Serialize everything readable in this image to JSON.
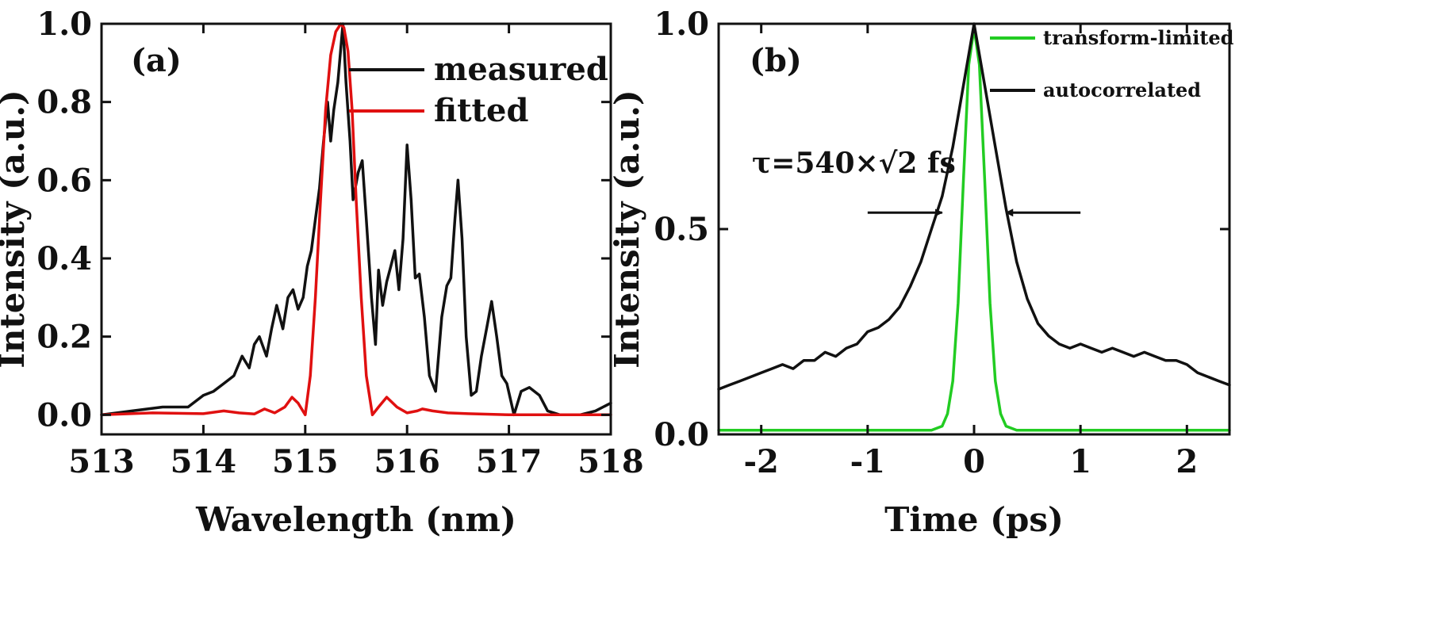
{
  "chart_data": [
    {
      "type": "line",
      "panel_label": "(a)",
      "xlabel": "Wavelength (nm)",
      "ylabel": "Intensity (a.u.)",
      "xlim": [
        513,
        518
      ],
      "ylim": [
        -0.05,
        1.0
      ],
      "xticks": [
        513,
        514,
        515,
        516,
        517,
        518
      ],
      "xtick_labels": [
        "513",
        "514",
        "515",
        "516",
        "517",
        "518"
      ],
      "yticks": [
        0.0,
        0.2,
        0.4,
        0.6,
        0.8,
        1.0
      ],
      "ytick_labels": [
        "0.0",
        "0.2",
        "0.4",
        "0.6",
        "0.8",
        "1.0"
      ],
      "legend_position": "top-right",
      "series": [
        {
          "name": "measured",
          "color": "#111111",
          "x": [
            513.0,
            513.3,
            513.6,
            513.85,
            514.0,
            514.1,
            514.2,
            514.3,
            514.38,
            514.45,
            514.5,
            514.55,
            514.62,
            514.67,
            514.72,
            514.78,
            514.83,
            514.88,
            514.93,
            514.98,
            515.02,
            515.06,
            515.1,
            515.14,
            515.18,
            515.22,
            515.25,
            515.28,
            515.32,
            515.37,
            515.4,
            515.44,
            515.47,
            515.52,
            515.56,
            515.6,
            515.65,
            515.69,
            515.72,
            515.76,
            515.8,
            515.84,
            515.88,
            515.92,
            515.96,
            516.0,
            516.04,
            516.08,
            516.12,
            516.17,
            516.22,
            516.28,
            516.34,
            516.39,
            516.43,
            516.47,
            516.5,
            516.54,
            516.58,
            516.63,
            516.68,
            516.73,
            516.78,
            516.83,
            516.88,
            516.93,
            516.98,
            517.05,
            517.12,
            517.2,
            517.3,
            517.38,
            517.5,
            517.7,
            517.85,
            518.0
          ],
          "values": [
            0.0,
            0.01,
            0.02,
            0.02,
            0.05,
            0.06,
            0.08,
            0.1,
            0.15,
            0.12,
            0.18,
            0.2,
            0.15,
            0.22,
            0.28,
            0.22,
            0.3,
            0.32,
            0.27,
            0.3,
            0.38,
            0.42,
            0.5,
            0.58,
            0.7,
            0.8,
            0.7,
            0.78,
            0.85,
            1.0,
            0.85,
            0.7,
            0.55,
            0.62,
            0.65,
            0.5,
            0.3,
            0.18,
            0.37,
            0.28,
            0.34,
            0.38,
            0.42,
            0.32,
            0.45,
            0.69,
            0.55,
            0.35,
            0.36,
            0.25,
            0.1,
            0.06,
            0.25,
            0.33,
            0.35,
            0.5,
            0.6,
            0.45,
            0.2,
            0.05,
            0.06,
            0.15,
            0.22,
            0.29,
            0.2,
            0.1,
            0.08,
            0.0,
            0.06,
            0.07,
            0.05,
            0.01,
            0.0,
            0.0,
            0.01,
            0.03
          ]
        },
        {
          "name": "fitted",
          "color": "#e01010",
          "x": [
            513.0,
            513.5,
            514.0,
            514.2,
            514.35,
            514.5,
            514.6,
            514.7,
            514.8,
            514.87,
            514.93,
            515.0,
            515.05,
            515.1,
            515.15,
            515.2,
            515.25,
            515.3,
            515.35,
            515.38,
            515.42,
            515.46,
            515.5,
            515.55,
            515.6,
            515.66,
            515.72,
            515.8,
            515.9,
            516.0,
            516.1,
            516.15,
            516.25,
            516.4,
            516.6,
            517.0,
            517.5,
            518.0
          ],
          "values": [
            0.0,
            0.005,
            0.003,
            0.01,
            0.005,
            0.002,
            0.015,
            0.005,
            0.02,
            0.045,
            0.03,
            0.0,
            0.1,
            0.3,
            0.55,
            0.78,
            0.92,
            0.98,
            1.0,
            0.99,
            0.93,
            0.78,
            0.55,
            0.3,
            0.1,
            0.0,
            0.02,
            0.045,
            0.02,
            0.005,
            0.01,
            0.015,
            0.01,
            0.005,
            0.003,
            0.0,
            0.0,
            0.0
          ]
        }
      ]
    },
    {
      "type": "line",
      "panel_label": "(b)",
      "xlabel": "Time (ps)",
      "ylabel": "Intensity (a.u.)",
      "xlim": [
        -2.4,
        2.4
      ],
      "ylim": [
        0.0,
        1.0
      ],
      "xticks": [
        -2,
        -1,
        0,
        1,
        2
      ],
      "xtick_labels": [
        "-2",
        "-1",
        "0",
        "1",
        "2"
      ],
      "yticks": [
        0.0,
        0.5,
        1.0
      ],
      "ytick_labels": [
        "0.0",
        "0.5",
        "1.0"
      ],
      "legend_position": "top-right",
      "annotation": {
        "prefix": "τ=540×",
        "radical": "√2",
        "suffix": " fs",
        "arrow_y": 0.54,
        "left_arrow_x": [
          -1.0,
          -0.3
        ],
        "right_arrow_x": [
          1.0,
          0.3
        ]
      },
      "series": [
        {
          "name": "transform-limited",
          "color": "#22cc22",
          "x": [
            -2.4,
            -1.0,
            -0.4,
            -0.3,
            -0.25,
            -0.2,
            -0.15,
            -0.1,
            -0.05,
            0.0,
            0.05,
            0.1,
            0.15,
            0.2,
            0.25,
            0.3,
            0.4,
            1.0,
            2.4
          ],
          "values": [
            0.01,
            0.01,
            0.01,
            0.02,
            0.05,
            0.13,
            0.32,
            0.62,
            0.9,
            0.99,
            0.9,
            0.62,
            0.32,
            0.13,
            0.05,
            0.02,
            0.01,
            0.01,
            0.01
          ]
        },
        {
          "name": "autocorrelated",
          "color": "#111111",
          "x": [
            -2.4,
            -2.3,
            -2.2,
            -2.1,
            -2.0,
            -1.9,
            -1.8,
            -1.7,
            -1.6,
            -1.5,
            -1.4,
            -1.3,
            -1.2,
            -1.1,
            -1.0,
            -0.9,
            -0.8,
            -0.7,
            -0.6,
            -0.5,
            -0.4,
            -0.3,
            -0.2,
            -0.1,
            0.0,
            0.1,
            0.2,
            0.3,
            0.4,
            0.5,
            0.6,
            0.7,
            0.8,
            0.9,
            1.0,
            1.1,
            1.2,
            1.3,
            1.4,
            1.5,
            1.6,
            1.7,
            1.8,
            1.9,
            2.0,
            2.1,
            2.2,
            2.3,
            2.4
          ],
          "values": [
            0.11,
            0.12,
            0.13,
            0.14,
            0.15,
            0.16,
            0.17,
            0.16,
            0.18,
            0.18,
            0.2,
            0.19,
            0.21,
            0.22,
            0.25,
            0.26,
            0.28,
            0.31,
            0.36,
            0.42,
            0.5,
            0.58,
            0.7,
            0.85,
            1.0,
            0.85,
            0.7,
            0.55,
            0.42,
            0.33,
            0.27,
            0.24,
            0.22,
            0.21,
            0.22,
            0.21,
            0.2,
            0.21,
            0.2,
            0.19,
            0.2,
            0.19,
            0.18,
            0.18,
            0.17,
            0.15,
            0.14,
            0.13,
            0.12
          ]
        }
      ]
    }
  ]
}
